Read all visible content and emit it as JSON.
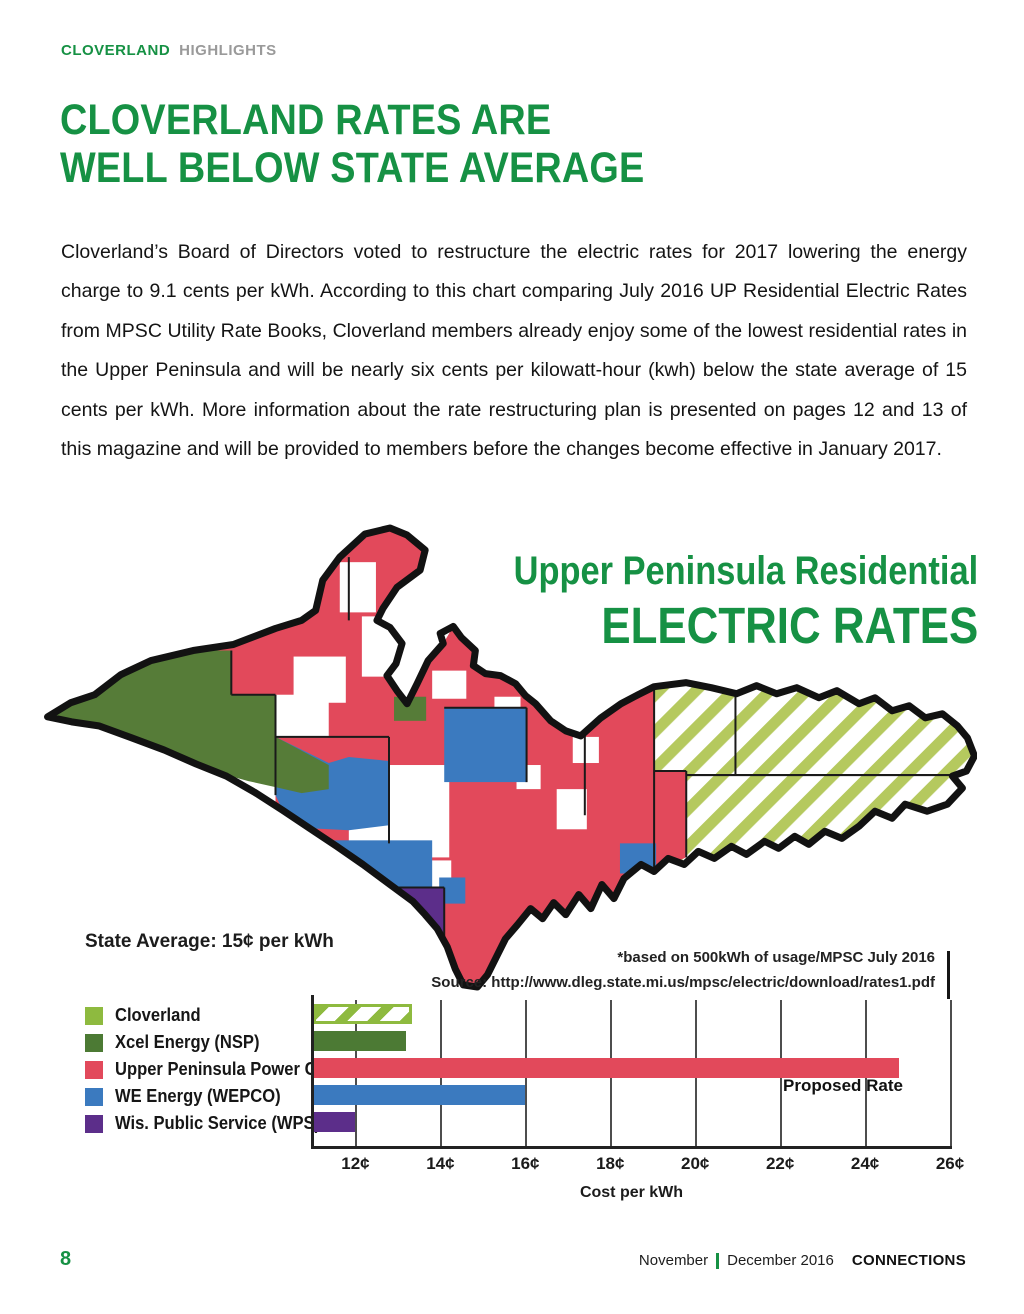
{
  "header": {
    "brand": "CLOVERLAND",
    "section": "HIGHLIGHTS",
    "title_line1": "CLOVERLAND RATES ARE",
    "title_line2": "WELL BELOW STATE AVERAGE"
  },
  "article": {
    "body": "Cloverland’s Board of Directors voted to restructure the electric rates for 2017 lowering the energy charge to 9.1 cents per kWh. According to this chart comparing July 2016 UP Residential Electric Rates from MPSC Utility Rate Books, Cloverland members already enjoy some of the lowest residential rates in the Upper Peninsula and will be nearly six cents per kilowatt-hour (kwh) below the state average of 15 cents per kWh. More information about the rate restructuring plan is presented on pages 12 and 13 of this magazine and will be provided to members before the changes become effective in January 2017."
  },
  "figure": {
    "map_title_line1": "Upper Peninsula Residential",
    "map_title_line2": "ELECTRIC RATES",
    "map_region_names": [
      "Cloverland (hatched east)",
      "Xcel Energy (NSP) west tip",
      "Upper Peninsula Power Co.",
      "WE Energy (WEPCO)",
      "Wis. Public Service (WPS) south tip"
    ]
  },
  "chart_data": {
    "type": "bar",
    "orientation": "horizontal",
    "title": "Upper Peninsula Residential ELECTRIC RATES",
    "categories": [
      "Cloverland",
      "Xcel Energy (NSP)",
      "Upper Peninsula Power Co.",
      "WE Energy (WEPCO)",
      "Wis. Public Service (WPS)"
    ],
    "values": [
      13.2,
      13.2,
      24.8,
      16.0,
      12.0
    ],
    "bar_colors": [
      "#8eba3f",
      "#4c7a34",
      "#e2495b",
      "#3b7abf",
      "#5c2e8a"
    ],
    "hatched_bars": [
      true,
      false,
      false,
      false,
      false
    ],
    "state_average_label": "State Average: 15¢ per kWh",
    "state_average_value": 15,
    "note": "*based on 500kWh of usage/MPSC July 2016",
    "source": "Source: http://www.dleg.state.mi.us/mpsc/electric/download/rates1.pdf",
    "annotation_label": "Proposed Rate",
    "annotation_series": "Upper Peninsula Power Co.",
    "xlabel": "Cost per kWh",
    "xlim": [
      11,
      26
    ],
    "x_ticks": [
      {
        "value": 12,
        "label": "12¢"
      },
      {
        "value": 14,
        "label": "14¢"
      },
      {
        "value": 16,
        "label": "16¢"
      },
      {
        "value": 18,
        "label": "18¢"
      },
      {
        "value": 20,
        "label": "20¢"
      },
      {
        "value": 22,
        "label": "22¢"
      },
      {
        "value": 24,
        "label": "24¢"
      },
      {
        "value": 26,
        "label": "26¢"
      }
    ],
    "legend_position": "left",
    "grid": true
  },
  "footer": {
    "page_number": "8",
    "issue_month1": "November",
    "issue_month2": "December 2016",
    "magazine": "CONNECTIONS"
  },
  "colors": {
    "accent_green": "#169144",
    "header_gray": "#9a9a9a",
    "cloverland": "#8eba3f",
    "xcel": "#4c7a34",
    "uppco": "#e2495b",
    "wepco": "#3b7abf",
    "wps": "#5c2e8a",
    "map_hatch": "#b5c95e",
    "map_xcel": "#567c38"
  }
}
